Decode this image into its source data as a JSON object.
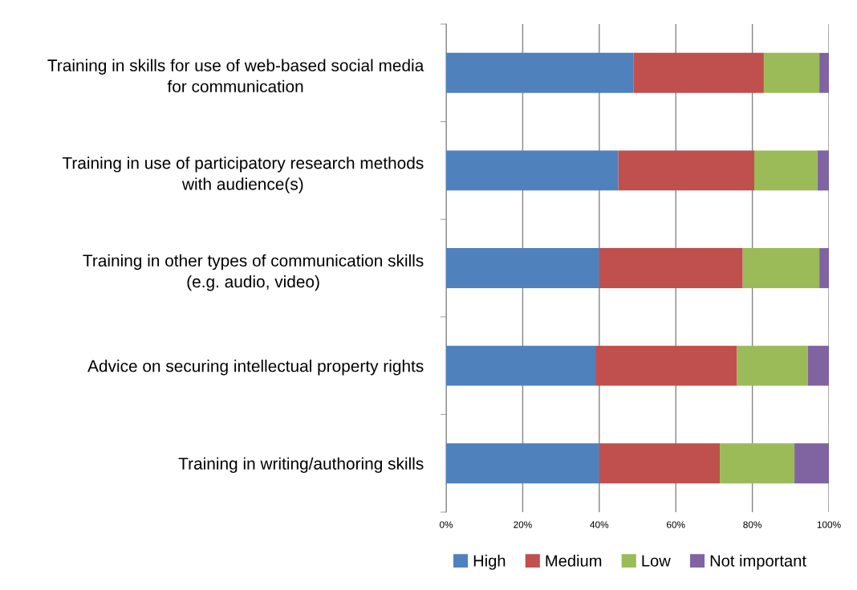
{
  "chart_data": {
    "type": "bar",
    "orientation": "horizontal",
    "stacked": true,
    "categories": [
      "Training in skills for use of web-based social media\nfor communication",
      "Training in use of participatory research methods\nwith audience(s)",
      "Training in other types of communication skills\n(e.g. audio, video)",
      "Advice on securing intellectual property rights",
      "Training in writing/authoring skills"
    ],
    "series": [
      {
        "name": "High",
        "color": "#4f81bd",
        "values": [
          49,
          45,
          40,
          39,
          40
        ]
      },
      {
        "name": "Medium",
        "color": "#c0504d",
        "values": [
          34,
          35.5,
          37.5,
          37,
          31.5
        ]
      },
      {
        "name": "Low",
        "color": "#9bbb59",
        "values": [
          14.5,
          16.5,
          20,
          18.5,
          19.5
        ]
      },
      {
        "name": "Not important",
        "color": "#8064a2",
        "values": [
          2.5,
          3,
          2.5,
          5.5,
          9
        ]
      }
    ],
    "xlim": [
      0,
      100
    ],
    "xticks": [
      {
        "value": 0,
        "label": "0%"
      },
      {
        "value": 20,
        "label": "20%"
      },
      {
        "value": 40,
        "label": "40%"
      },
      {
        "value": 60,
        "label": "60%"
      },
      {
        "value": 80,
        "label": "80%"
      },
      {
        "value": 100,
        "label": "100%"
      }
    ],
    "grid": "x",
    "legend": "bottom"
  }
}
